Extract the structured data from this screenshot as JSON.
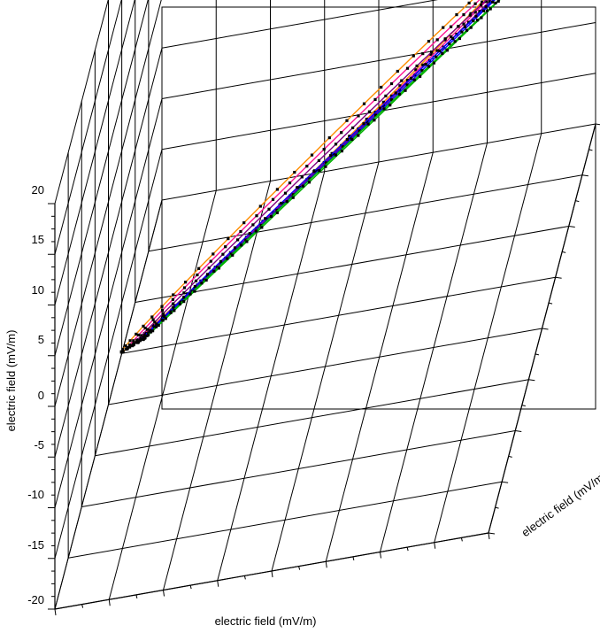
{
  "chart_data": {
    "type": "line",
    "projection": "3d",
    "zlabel": "electric field (mV/m)",
    "xlabel": "electric field (mV/m)",
    "ylabel": "electric field (mV/m)",
    "z_ticks": [
      "20",
      "15",
      "10",
      "5",
      "0",
      "-5",
      "-10",
      "-15",
      "-20"
    ],
    "zlim": [
      -20,
      20
    ],
    "grid": true,
    "legend": "none",
    "colors": {
      "axes": "#000000",
      "marker": "#000000",
      "series": [
        "#ff8c00",
        "#ff1493",
        "#800080",
        "#0000ff",
        "#00b000"
      ]
    },
    "series": [
      {
        "shape": "ellipse",
        "color": "#ff8c00",
        "center": [
          -0.3,
          0.0,
          1.0
        ],
        "axis_u": [
          18.5,
          0.0,
          16.0
        ],
        "axis_v": [
          0.0,
          2.8,
          -1.2
        ],
        "markers": 72
      },
      {
        "shape": "ellipse",
        "color": "#ff1493",
        "center": [
          -0.1,
          0.0,
          0.8
        ],
        "axis_u": [
          18.2,
          0.0,
          15.6
        ],
        "axis_v": [
          0.0,
          2.2,
          -1.0
        ],
        "markers": 72
      },
      {
        "shape": "ellipse",
        "color": "#800080",
        "center": [
          0.1,
          0.0,
          0.6
        ],
        "axis_u": [
          17.9,
          0.0,
          15.2
        ],
        "axis_v": [
          0.0,
          1.6,
          -0.8
        ],
        "markers": 72
      },
      {
        "shape": "ellipse",
        "color": "#0000ff",
        "center": [
          0.3,
          0.0,
          0.4
        ],
        "axis_u": [
          17.6,
          0.0,
          14.8
        ],
        "axis_v": [
          0.0,
          1.0,
          -0.6
        ],
        "markers": 72
      },
      {
        "shape": "ellipse",
        "color": "#00b000",
        "center": [
          0.5,
          0.0,
          0.2
        ],
        "axis_u": [
          17.3,
          0.0,
          14.4
        ],
        "axis_v": [
          0.0,
          0.4,
          -0.4
        ],
        "markers": 72
      }
    ]
  }
}
